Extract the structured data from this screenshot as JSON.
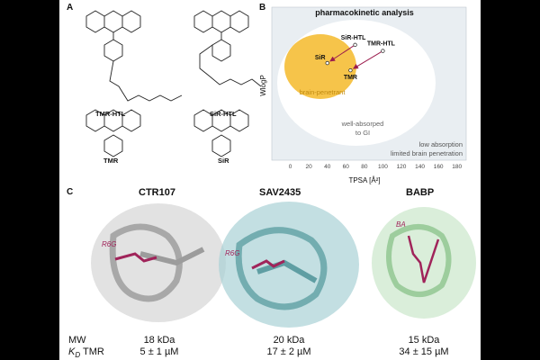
{
  "panels": {
    "a": {
      "label": "A",
      "compounds": [
        "TMR-HTL",
        "SiR-HTL",
        "TMR",
        "SiR"
      ]
    },
    "b": {
      "label": "B",
      "title": "pharmacokinetic analysis",
      "zones": {
        "brain": "brain-penetrant",
        "gi_line1": "well-absorped",
        "gi_line2": "to GI",
        "low_line1": "low absorption",
        "low_line2": "limited brain penetration"
      }
    },
    "c": {
      "label": "C",
      "proteins": [
        {
          "name": "CTR107",
          "ligand": "R6G",
          "mw": "18 kDa",
          "kd": "5 ± 1 µM",
          "color": "#b8b8b8"
        },
        {
          "name": "SAV2435",
          "ligand": "R6G",
          "mw": "20 kDa",
          "kd": "17 ± 2 µM",
          "color": "#8fc3c6"
        },
        {
          "name": "BABP",
          "ligand": "BA",
          "mw": "15 kDa",
          "kd": "34 ± 15 µM",
          "color": "#b5dcb5"
        }
      ],
      "row_labels": {
        "mw": "MW",
        "kd_sym": "K",
        "kd_sub": "D",
        "kd_suffix": " TMR"
      }
    }
  },
  "chart_data": {
    "type": "scatter",
    "title": "pharmacokinetic analysis",
    "xlabel": "TPSA [Å²]",
    "ylabel": "WlogP",
    "xlim": [
      -20,
      190
    ],
    "ylim": [
      -4.6,
      8
    ],
    "xticks": [
      0,
      20,
      40,
      60,
      80,
      100,
      120,
      140,
      160,
      180
    ],
    "points": [
      {
        "name": "SiR-HTL",
        "x": 70,
        "y": 4.9
      },
      {
        "name": "TMR-HTL",
        "x": 100,
        "y": 4.4
      },
      {
        "name": "SiR",
        "x": 40,
        "y": 3.4
      },
      {
        "name": "TMR",
        "x": 65,
        "y": 2.8
      }
    ],
    "arrows": [
      {
        "from": "SiR-HTL",
        "to": "SiR"
      },
      {
        "from": "TMR-HTL",
        "to": "TMR"
      }
    ],
    "colors": {
      "brain": "#f6c44a",
      "gi": "#ffffff",
      "background": "#e9eef2",
      "arrow": "#9b1c4d"
    }
  }
}
